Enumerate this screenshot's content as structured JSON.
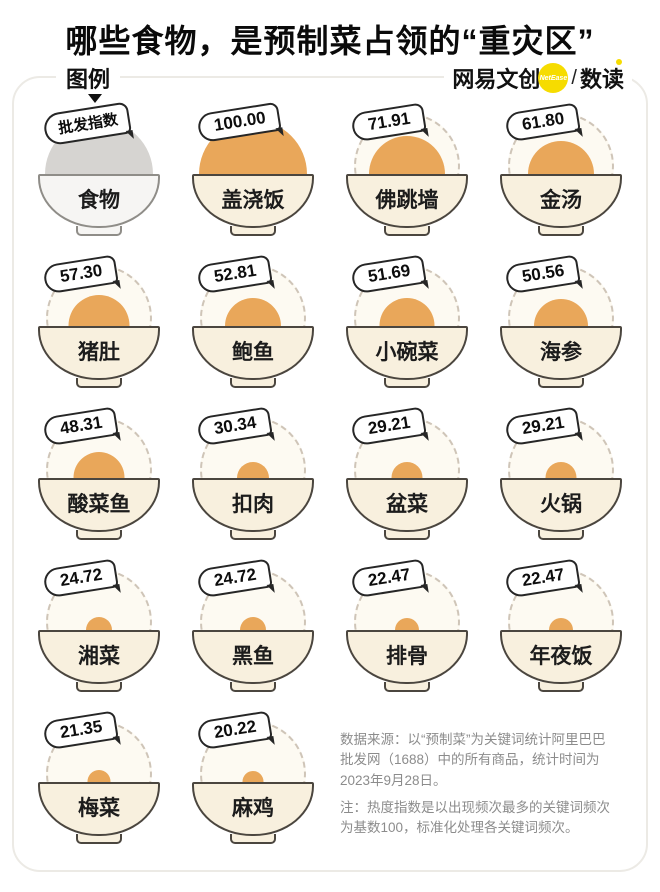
{
  "title": "哪些食物，是预制菜占领的“重灾区”",
  "legend": {
    "label": "图例",
    "tag": "批发指数",
    "bowl_label": "食物"
  },
  "brand": {
    "name_left": "网易文创",
    "badge": "NetEase",
    "separator": "/",
    "name_right": "数读"
  },
  "chart_data": {
    "type": "bar",
    "variant": "pictogram-bowls",
    "value_label": "批发指数",
    "max_value": 100,
    "categories": [
      "盖浇饭",
      "佛跳墙",
      "金汤",
      "猪肚",
      "鲍鱼",
      "小碗菜",
      "海参",
      "酸菜鱼",
      "扣肉",
      "盆菜",
      "火锅",
      "湘菜",
      "黑鱼",
      "排骨",
      "年夜饭",
      "梅菜",
      "麻鸡"
    ],
    "values": [
      100.0,
      71.91,
      61.8,
      57.3,
      52.81,
      51.69,
      50.56,
      48.31,
      30.34,
      29.21,
      29.21,
      24.72,
      24.72,
      22.47,
      22.47,
      21.35,
      20.22
    ],
    "items": [
      {
        "name": "盖浇饭",
        "value": 100.0,
        "label": "100.00"
      },
      {
        "name": "佛跳墙",
        "value": 71.91,
        "label": "71.91"
      },
      {
        "name": "金汤",
        "value": 61.8,
        "label": "61.80"
      },
      {
        "name": "猪肚",
        "value": 57.3,
        "label": "57.30"
      },
      {
        "name": "鲍鱼",
        "value": 52.81,
        "label": "52.81"
      },
      {
        "name": "小碗菜",
        "value": 51.69,
        "label": "51.69"
      },
      {
        "name": "海参",
        "value": 50.56,
        "label": "50.56"
      },
      {
        "name": "酸菜鱼",
        "value": 48.31,
        "label": "48.31"
      },
      {
        "name": "扣肉",
        "value": 30.34,
        "label": "30.34"
      },
      {
        "name": "盆菜",
        "value": 29.21,
        "label": "29.21"
      },
      {
        "name": "火锅",
        "value": 29.21,
        "label": "29.21"
      },
      {
        "name": "湘菜",
        "value": 24.72,
        "label": "24.72"
      },
      {
        "name": "黑鱼",
        "value": 24.72,
        "label": "24.72"
      },
      {
        "name": "排骨",
        "value": 22.47,
        "label": "22.47"
      },
      {
        "name": "年夜饭",
        "value": 22.47,
        "label": "22.47"
      },
      {
        "name": "梅菜",
        "value": 21.35,
        "label": "21.35"
      },
      {
        "name": "麻鸡",
        "value": 20.22,
        "label": "20.22"
      }
    ]
  },
  "notes": {
    "source": "数据来源：以“预制菜”为关键词统计阿里巴巴批发网（1688）中的所有商品，统计时间为2023年9月28日。",
    "method": "注：热度指数是以出现频次最多的关键词频次为基数100，标准化处理各关键词频次。"
  },
  "colors": {
    "dome_orange": "#E9A75A",
    "bowl_cream": "#F8F0DE",
    "bowl_outline": "#4B463F",
    "guide_dashed": "#CFC5B8",
    "legend_dome_gray": "#D6D4D1",
    "brand_yellow": "#F6DC00",
    "panel_border": "#ECEAE5",
    "note_gray": "#8C8C8C"
  }
}
